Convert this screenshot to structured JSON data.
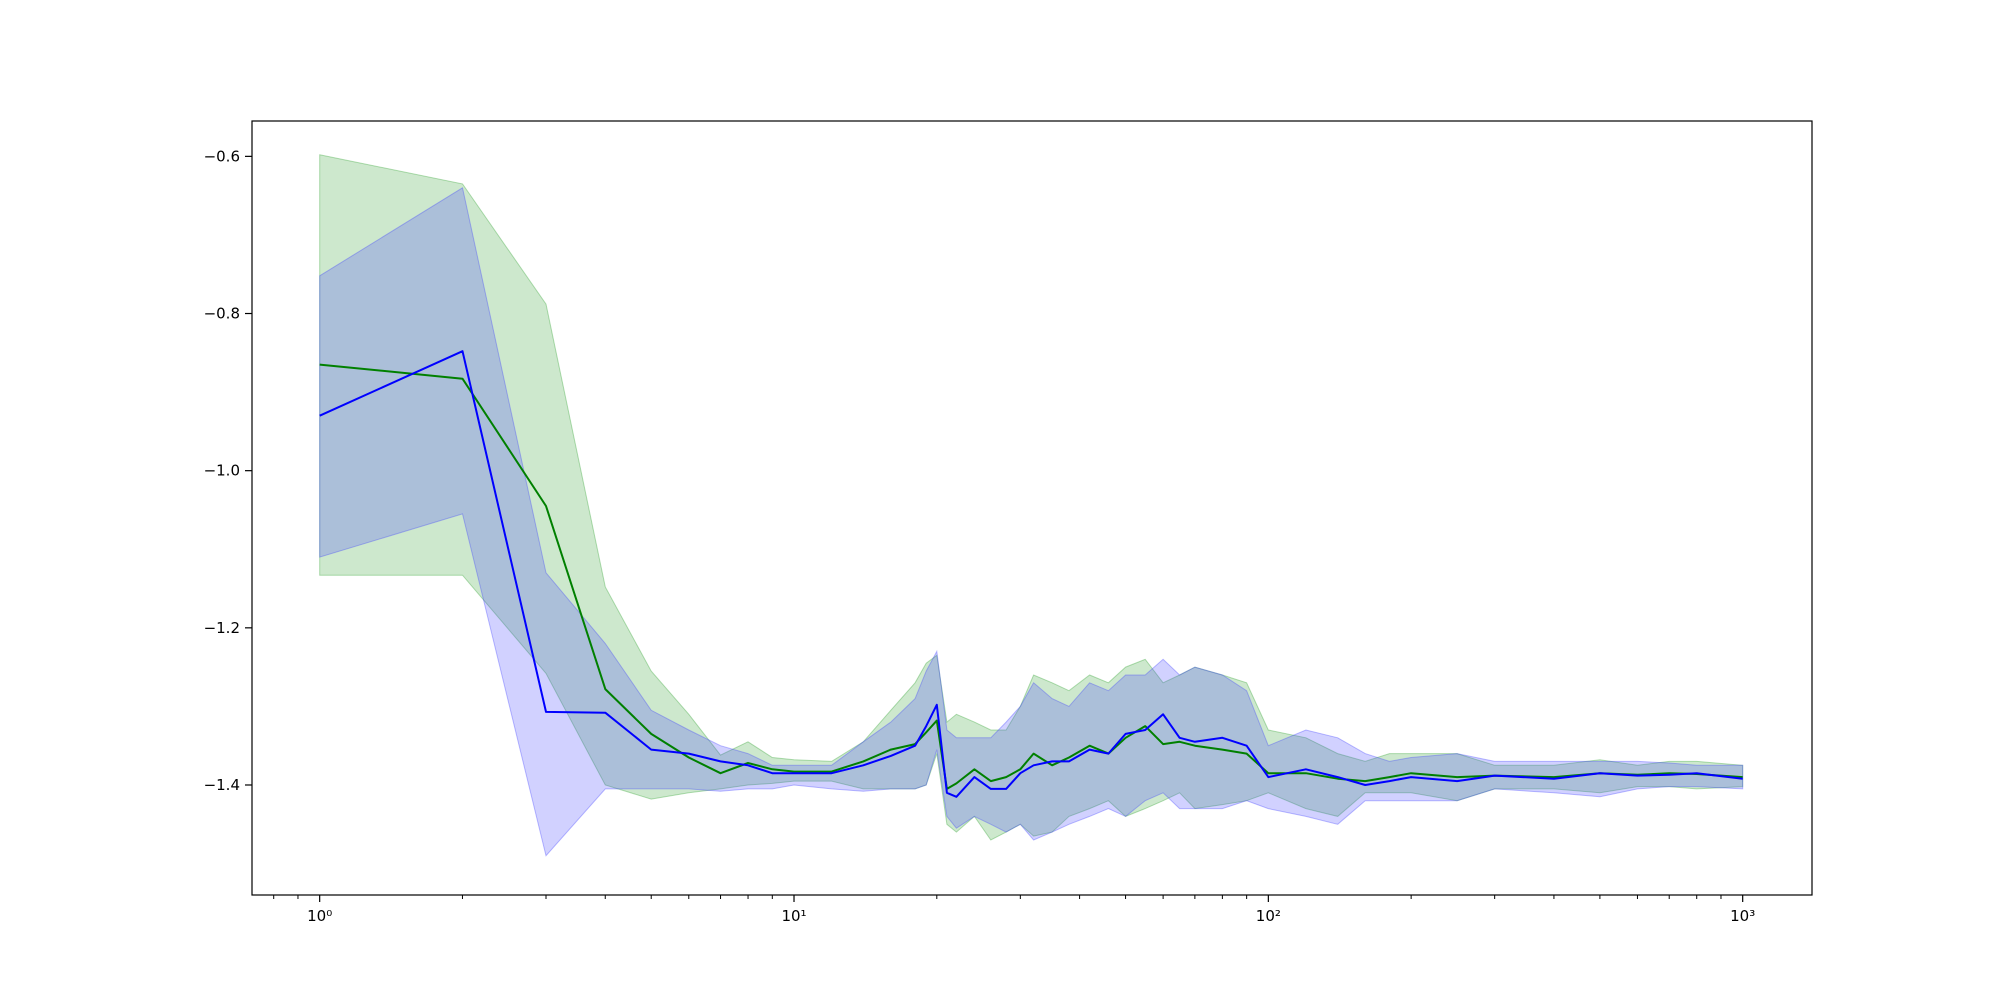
{
  "chart_data": {
    "type": "line",
    "title": "",
    "xlabel": "",
    "ylabel": "",
    "x_scale": "log",
    "xlim": [
      0.72,
      1400
    ],
    "ylim": [
      -1.54,
      -0.555
    ],
    "grid": false,
    "x_ticks": [
      {
        "value": 1,
        "label": "10⁰"
      },
      {
        "value": 10,
        "label": "10¹"
      },
      {
        "value": 100,
        "label": "10²"
      },
      {
        "value": 1000,
        "label": "10³"
      }
    ],
    "y_ticks": [
      {
        "value": -0.6,
        "label": "−0.6"
      },
      {
        "value": -0.8,
        "label": "−0.8"
      },
      {
        "value": -1.0,
        "label": "−1.0"
      },
      {
        "value": -1.2,
        "label": "−1.2"
      },
      {
        "value": -1.4,
        "label": "−1.4"
      }
    ],
    "series": [
      {
        "color": "#008000",
        "band_color": "#2ca02c",
        "x": [
          1,
          2,
          3,
          4,
          5,
          6,
          7,
          8,
          9,
          10,
          12,
          14,
          16,
          18,
          19,
          20,
          21,
          22,
          24,
          26,
          28,
          30,
          32,
          35,
          38,
          42,
          46,
          50,
          55,
          60,
          65,
          70,
          80,
          90,
          100,
          120,
          140,
          160,
          180,
          200,
          250,
          300,
          400,
          500,
          600,
          700,
          800,
          1000
        ],
        "mean": [
          -0.865,
          -0.883,
          -1.045,
          -1.278,
          -1.335,
          -1.365,
          -1.385,
          -1.372,
          -1.38,
          -1.383,
          -1.383,
          -1.37,
          -1.355,
          -1.348,
          -1.333,
          -1.318,
          -1.405,
          -1.398,
          -1.38,
          -1.395,
          -1.39,
          -1.38,
          -1.36,
          -1.375,
          -1.365,
          -1.35,
          -1.36,
          -1.34,
          -1.325,
          -1.348,
          -1.345,
          -1.35,
          -1.355,
          -1.36,
          -1.385,
          -1.385,
          -1.392,
          -1.395,
          -1.39,
          -1.385,
          -1.39,
          -1.388,
          -1.39,
          -1.385,
          -1.387,
          -1.385,
          -1.386,
          -1.39
        ],
        "lower": [
          -1.133,
          -1.133,
          -1.258,
          -1.4,
          -1.418,
          -1.41,
          -1.405,
          -1.4,
          -1.398,
          -1.395,
          -1.395,
          -1.405,
          -1.405,
          -1.405,
          -1.4,
          -1.36,
          -1.45,
          -1.46,
          -1.44,
          -1.47,
          -1.46,
          -1.45,
          -1.465,
          -1.46,
          -1.44,
          -1.43,
          -1.42,
          -1.44,
          -1.43,
          -1.42,
          -1.41,
          -1.43,
          -1.425,
          -1.42,
          -1.41,
          -1.43,
          -1.44,
          -1.41,
          -1.41,
          -1.41,
          -1.42,
          -1.405,
          -1.405,
          -1.41,
          -1.402,
          -1.402,
          -1.405,
          -1.402
        ],
        "upper": [
          -0.598,
          -0.635,
          -0.788,
          -1.148,
          -1.255,
          -1.31,
          -1.362,
          -1.345,
          -1.365,
          -1.368,
          -1.37,
          -1.345,
          -1.305,
          -1.27,
          -1.245,
          -1.235,
          -1.32,
          -1.31,
          -1.32,
          -1.33,
          -1.33,
          -1.3,
          -1.26,
          -1.27,
          -1.28,
          -1.26,
          -1.27,
          -1.25,
          -1.24,
          -1.27,
          -1.26,
          -1.25,
          -1.26,
          -1.27,
          -1.33,
          -1.34,
          -1.36,
          -1.37,
          -1.36,
          -1.36,
          -1.36,
          -1.375,
          -1.375,
          -1.368,
          -1.375,
          -1.37,
          -1.37,
          -1.375
        ]
      },
      {
        "color": "#0000ff",
        "band_color": "#4040ff",
        "x": [
          1,
          2,
          3,
          4,
          5,
          6,
          7,
          8,
          9,
          10,
          12,
          14,
          16,
          18,
          19,
          20,
          21,
          22,
          24,
          26,
          28,
          30,
          32,
          35,
          38,
          42,
          46,
          50,
          55,
          60,
          65,
          70,
          80,
          90,
          100,
          120,
          140,
          160,
          180,
          200,
          250,
          300,
          400,
          500,
          600,
          700,
          800,
          1000
        ],
        "mean": [
          -0.93,
          -0.848,
          -1.307,
          -1.308,
          -1.355,
          -1.36,
          -1.37,
          -1.375,
          -1.385,
          -1.385,
          -1.385,
          -1.375,
          -1.363,
          -1.35,
          -1.325,
          -1.298,
          -1.41,
          -1.415,
          -1.39,
          -1.405,
          -1.405,
          -1.385,
          -1.375,
          -1.37,
          -1.37,
          -1.355,
          -1.36,
          -1.335,
          -1.33,
          -1.31,
          -1.34,
          -1.345,
          -1.34,
          -1.35,
          -1.39,
          -1.38,
          -1.39,
          -1.4,
          -1.395,
          -1.39,
          -1.395,
          -1.388,
          -1.392,
          -1.385,
          -1.388,
          -1.387,
          -1.385,
          -1.392
        ],
        "lower": [
          -1.11,
          -1.055,
          -1.49,
          -1.405,
          -1.405,
          -1.405,
          -1.408,
          -1.405,
          -1.405,
          -1.4,
          -1.405,
          -1.408,
          -1.405,
          -1.405,
          -1.4,
          -1.355,
          -1.44,
          -1.455,
          -1.44,
          -1.45,
          -1.46,
          -1.45,
          -1.47,
          -1.46,
          -1.45,
          -1.44,
          -1.43,
          -1.44,
          -1.42,
          -1.41,
          -1.43,
          -1.43,
          -1.43,
          -1.42,
          -1.43,
          -1.44,
          -1.45,
          -1.42,
          -1.42,
          -1.42,
          -1.42,
          -1.405,
          -1.41,
          -1.415,
          -1.405,
          -1.402,
          -1.402,
          -1.405
        ],
        "upper": [
          -0.752,
          -0.64,
          -1.13,
          -1.22,
          -1.305,
          -1.33,
          -1.35,
          -1.36,
          -1.375,
          -1.375,
          -1.375,
          -1.345,
          -1.32,
          -1.29,
          -1.255,
          -1.23,
          -1.33,
          -1.34,
          -1.34,
          -1.34,
          -1.32,
          -1.3,
          -1.27,
          -1.29,
          -1.3,
          -1.27,
          -1.28,
          -1.26,
          -1.26,
          -1.24,
          -1.26,
          -1.25,
          -1.26,
          -1.28,
          -1.35,
          -1.33,
          -1.34,
          -1.36,
          -1.37,
          -1.365,
          -1.36,
          -1.37,
          -1.37,
          -1.37,
          -1.37,
          -1.372,
          -1.375,
          -1.375
        ]
      }
    ]
  }
}
